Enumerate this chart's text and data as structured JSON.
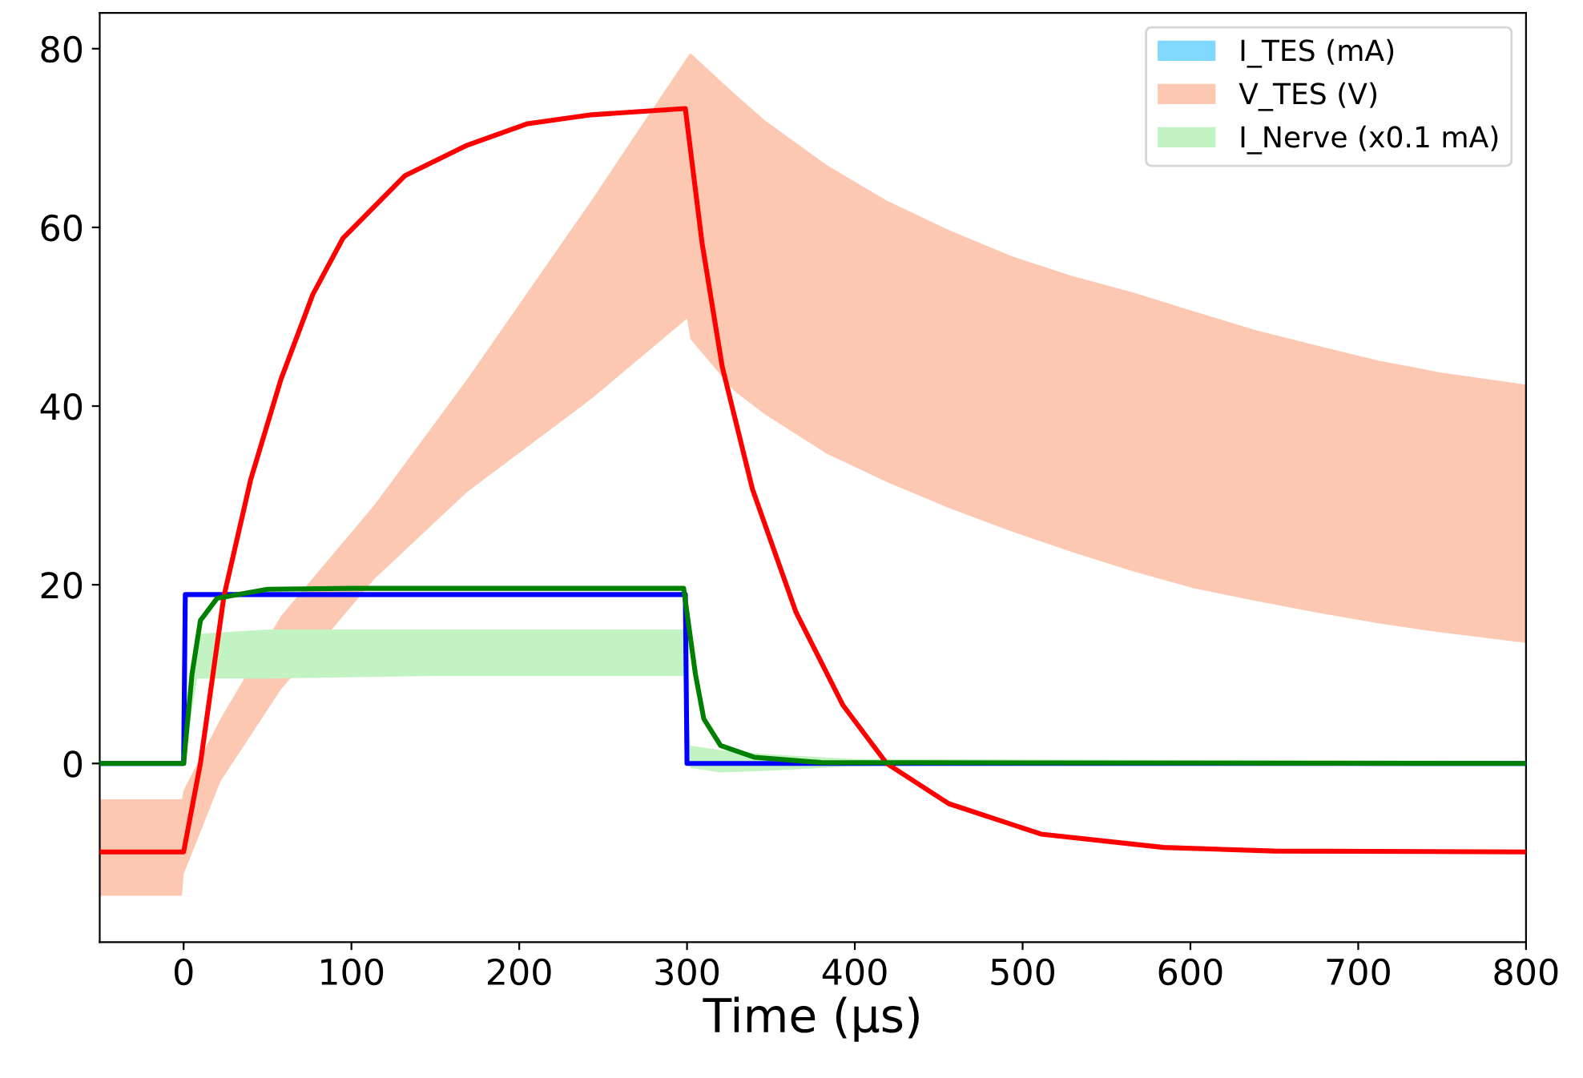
{
  "chart_data": {
    "type": "line",
    "xlabel": "Time (µs)",
    "xlim": [
      -50,
      800
    ],
    "xticks": [
      0,
      100,
      200,
      300,
      400,
      500,
      600,
      700,
      800
    ],
    "ylim": [
      -20,
      84
    ],
    "yticks": [
      0,
      20,
      40,
      60,
      80
    ],
    "grid": false,
    "legend": "top right",
    "line_style": "solid",
    "marker": "none",
    "series": [
      {
        "name": "I_TES (mA)",
        "color": "#80d8fc"
      },
      {
        "name": "V_TES (V)",
        "color": "#fcc8b2",
        "x": [
          -50,
          -1,
          0,
          22,
          58,
          114,
          169,
          243,
          300,
          302,
          328,
          347,
          383,
          419,
          456,
          493,
          529,
          566,
          602,
          639,
          675,
          712,
          748,
          800
        ],
        "values": [
          null,
          null,
          null,
          null,
          null,
          null,
          null,
          null,
          null,
          null,
          null,
          null,
          null,
          null,
          null,
          null,
          null,
          null,
          null,
          null,
          null,
          null,
          null,
          null
        ],
        "upper": [
          -4,
          -4,
          -3,
          5,
          16.5,
          29,
          43,
          63,
          79,
          79.5,
          75,
          71.9,
          67,
          63,
          59.7,
          56.8,
          54.6,
          52.7,
          50.6,
          48.5,
          46.8,
          45.1,
          43.8,
          42.4
        ],
        "lower": [
          -14.8,
          -14.8,
          -12.4,
          -2,
          8.3,
          20.7,
          30.4,
          40.8,
          49.8,
          47.5,
          41.7,
          39,
          34.7,
          31.5,
          28.6,
          26,
          23.7,
          21.5,
          19.6,
          18.2,
          16.9,
          15.7,
          14.7,
          13.5
        ]
      },
      {
        "name": "I_Nerve (x0.1 mA)",
        "color": "#c3f2c3",
        "x": [
          -50,
          0,
          8,
          50,
          150,
          250,
          298,
          302,
          320,
          350,
          400,
          800
        ],
        "values": [
          null,
          null,
          null,
          null,
          null,
          null,
          null,
          null,
          null,
          null,
          null,
          null
        ],
        "upper": [
          0,
          0,
          14.5,
          15,
          15,
          15,
          15,
          2,
          1.5,
          1,
          0.5,
          0.3
        ],
        "lower": [
          0,
          0,
          9.5,
          9.5,
          9.8,
          9.8,
          9.8,
          -0.5,
          -1,
          -0.8,
          -0.3,
          0
        ]
      },
      {
        "type": "line",
        "color": "#0000ff",
        "x": [
          -50,
          0,
          1,
          299,
          300,
          800
        ],
        "values": [
          0,
          0,
          18.9,
          18.9,
          0,
          0
        ]
      },
      {
        "type": "line",
        "color": "#ff0000",
        "x": [
          -50,
          0,
          10,
          24,
          40,
          58,
          77,
          95,
          132,
          169,
          205,
          243,
          299,
          309,
          321,
          339,
          365,
          393,
          419,
          456,
          511,
          584,
          650,
          800
        ],
        "values": [
          -9.9,
          -9.9,
          0,
          18.7,
          31.8,
          43,
          52.5,
          58.8,
          65.8,
          69.2,
          71.6,
          72.6,
          73.3,
          58.2,
          44.4,
          30.7,
          16.9,
          6.5,
          0,
          -4.5,
          -7.9,
          -9.4,
          -9.8,
          -9.9
        ]
      },
      {
        "type": "line",
        "color": "#008000",
        "x": [
          -50,
          0,
          5,
          10,
          20,
          50,
          100,
          298,
          305,
          310,
          320,
          340,
          380,
          800
        ],
        "values": [
          0,
          0,
          10,
          16,
          18.5,
          19.5,
          19.6,
          19.6,
          10,
          5,
          2,
          0.7,
          0.1,
          0
        ]
      }
    ]
  }
}
